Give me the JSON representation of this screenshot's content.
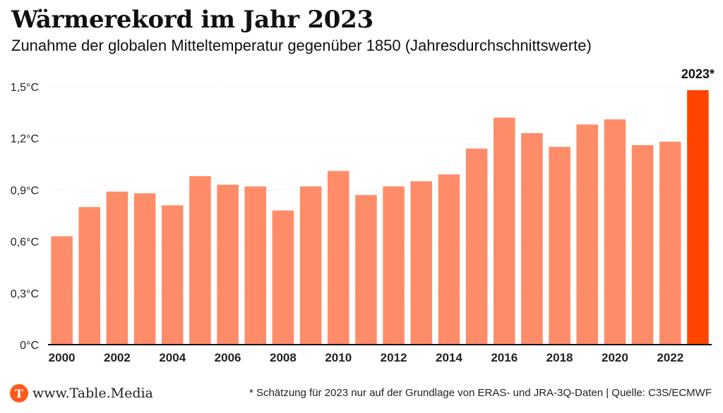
{
  "header": {
    "title": "Wärmerekord im Jahr 2023",
    "subtitle": "Zunahme der globalen Mitteltemperatur gegenüber 1850 (Jahresdurchschnittswerte)"
  },
  "footer": {
    "brand": "www.Table.Media",
    "logo_letter": "T",
    "note": "* Schätzung für 2023 nur auf der Grundlage von ERAS- und JRA-3Q-Daten | Quelle: C3S/ECMWF"
  },
  "colors": {
    "bar": "#ff8c69",
    "highlight": "#ff4500",
    "grid": "#dddddd",
    "axis": "#111111",
    "brand": "#ff5a1f"
  },
  "chart_data": {
    "type": "bar",
    "categories": [
      "2000",
      "2001",
      "2002",
      "2003",
      "2004",
      "2005",
      "2006",
      "2007",
      "2008",
      "2009",
      "2010",
      "2011",
      "2012",
      "2013",
      "2014",
      "2015",
      "2016",
      "2017",
      "2018",
      "2019",
      "2020",
      "2021",
      "2022",
      "2023"
    ],
    "values": [
      0.63,
      0.8,
      0.89,
      0.88,
      0.81,
      0.98,
      0.93,
      0.92,
      0.78,
      0.92,
      1.01,
      0.87,
      0.92,
      0.95,
      0.99,
      1.14,
      1.32,
      1.23,
      1.15,
      1.28,
      1.31,
      1.16,
      1.18,
      1.48
    ],
    "highlight_index": 23,
    "highlight_label": "2023*",
    "x_tick_labels": [
      "2000",
      "2002",
      "2004",
      "2006",
      "2008",
      "2010",
      "2012",
      "2014",
      "2016",
      "2018",
      "2020",
      "2022"
    ],
    "y_ticks": [
      0,
      0.3,
      0.6,
      0.9,
      1.2,
      1.5
    ],
    "y_tick_labels": [
      "0°C",
      "0,3°C",
      "0,6°C",
      "0,9°C",
      "1,2°C",
      "1,5°C"
    ],
    "ylim": [
      0,
      1.5
    ],
    "grid": true,
    "xlabel": "",
    "ylabel": ""
  }
}
